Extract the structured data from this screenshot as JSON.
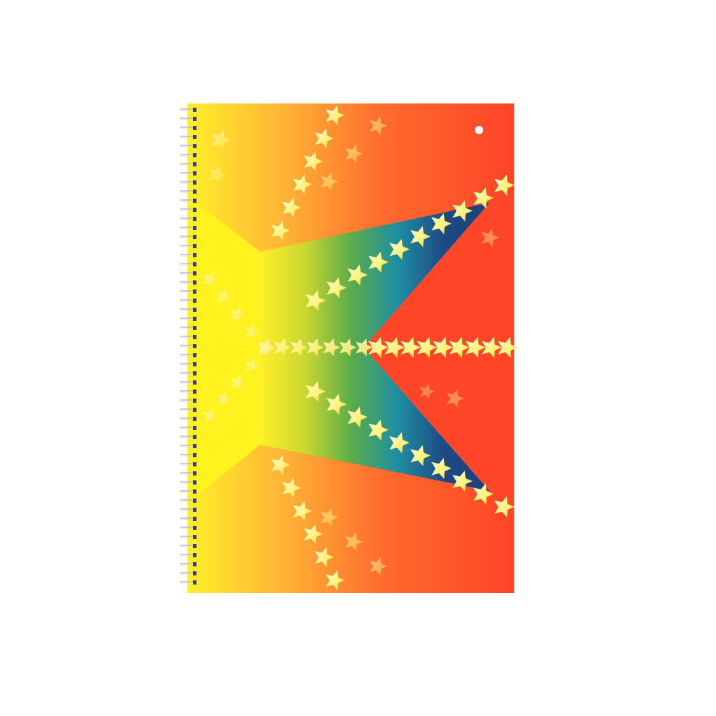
{
  "notebook": {
    "cover_colors": {
      "yellow": "#fff21e",
      "orange": "#ffa030",
      "red": "#ff4a2a",
      "green": "#7ab83a",
      "teal": "#1f8aa0",
      "navy": "#1d3f7a",
      "star": "#fff6a0"
    },
    "spiral_binding": "wire",
    "motif": "star-icon"
  }
}
